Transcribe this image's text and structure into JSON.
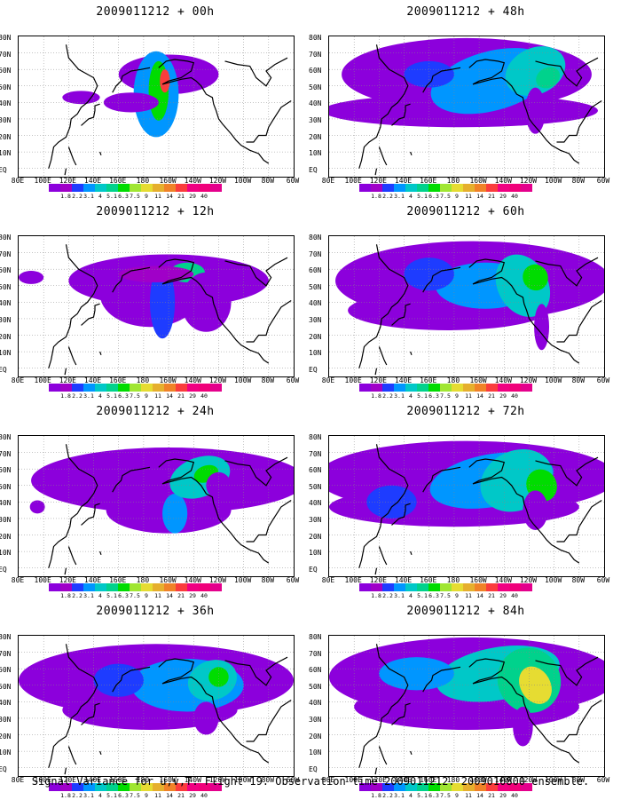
{
  "caption": "Signal Variance for u,v,T. Flight 19. Observation time 2009011212. 2009010800 ensemble.",
  "lat_labels": [
    "80N",
    "70N",
    "60N",
    "50N",
    "40N",
    "30N",
    "20N",
    "10N",
    "EQ"
  ],
  "lon_labels": [
    "80E",
    "100E",
    "120E",
    "140E",
    "160E",
    "180",
    "160W",
    "140W",
    "120W",
    "100W",
    "80W",
    "60W"
  ],
  "colorbar": {
    "levels": [
      "1.8",
      "2.2",
      "3.1",
      "4",
      "5.1",
      "6.3",
      "7.5",
      "9",
      "11",
      "14",
      "21",
      "29",
      "40"
    ],
    "colors": [
      "#8c00dc",
      "#a000c8",
      "#1e3cff",
      "#0096ff",
      "#00c8c8",
      "#00d28c",
      "#00dc00",
      "#a0e632",
      "#e6dc32",
      "#e6af2d",
      "#f08228",
      "#fa3c3c",
      "#f00082"
    ]
  },
  "panels": [
    {
      "title": "2009011212 + 00h"
    },
    {
      "title": "2009011212 + 48h"
    },
    {
      "title": "2009011212 + 12h"
    },
    {
      "title": "2009011212 + 60h"
    },
    {
      "title": "2009011212 + 24h"
    },
    {
      "title": "2009011212 + 72h"
    },
    {
      "title": "2009011212 + 36h"
    },
    {
      "title": "2009011212 + 84h"
    }
  ],
  "chart_data": {
    "type": "heatmap",
    "x": [
      "80E",
      "100E",
      "120E",
      "140E",
      "160E",
      "180",
      "160W",
      "140W",
      "120W",
      "100W",
      "80W",
      "60W"
    ],
    "y": [
      "80N",
      "70N",
      "60N",
      "50N",
      "40N",
      "30N",
      "20N",
      "10N",
      "EQ"
    ],
    "panels": [
      "2009011212 + 00h",
      "2009011212 + 48h",
      "2009011212 + 12h",
      "2009011212 + 60h",
      "2009011212 + 24h",
      "2009011212 + 72h",
      "2009011212 + 36h",
      "2009011212 + 84h"
    ],
    "levels": [
      1.8,
      2.2,
      3.1,
      4,
      5.1,
      6.3,
      7.5,
      9,
      11,
      14,
      21,
      29,
      40
    ],
    "title": "Signal Variance for u,v,T. Flight 19. Observation time 2009011212. 2009010800 ensemble."
  }
}
